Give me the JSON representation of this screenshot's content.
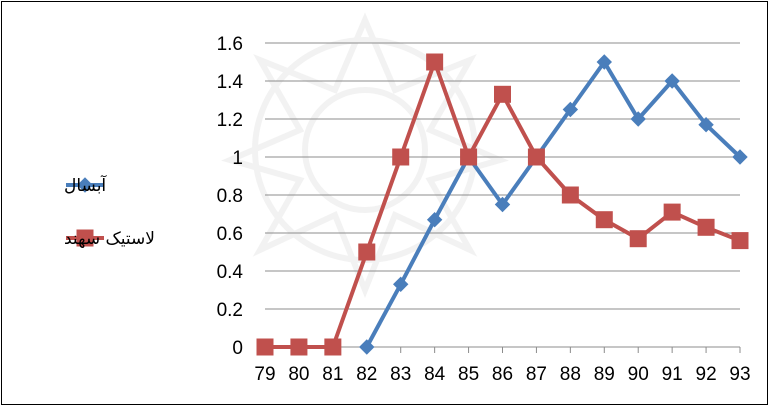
{
  "chart_data": {
    "type": "line",
    "title": "",
    "xlabel": "",
    "ylabel": "",
    "categories": [
      "79",
      "80",
      "81",
      "82",
      "83",
      "84",
      "85",
      "86",
      "87",
      "88",
      "89",
      "90",
      "91",
      "92",
      "93"
    ],
    "ylim": [
      0,
      1.6
    ],
    "yticks": [
      "0",
      "0.2",
      "0.4",
      "0.6",
      "0.8",
      "1",
      "1.2",
      "1.4",
      "1.6"
    ],
    "grid": true,
    "legend_position": "left",
    "series": [
      {
        "name": "آبسال",
        "color": "#4a7ebb",
        "marker": "diamond",
        "values": [
          null,
          null,
          null,
          0,
          0.33,
          0.67,
          1.0,
          0.75,
          1.0,
          1.25,
          1.5,
          1.2,
          1.4,
          1.17,
          1.0
        ]
      },
      {
        "name": "لاستیک سهند",
        "color": "#c0504d",
        "marker": "square",
        "values": [
          0,
          0,
          0,
          0.5,
          1.0,
          1.5,
          1.0,
          1.33,
          1.0,
          0.8,
          0.67,
          0.57,
          0.71,
          0.63,
          0.56
        ]
      }
    ]
  }
}
